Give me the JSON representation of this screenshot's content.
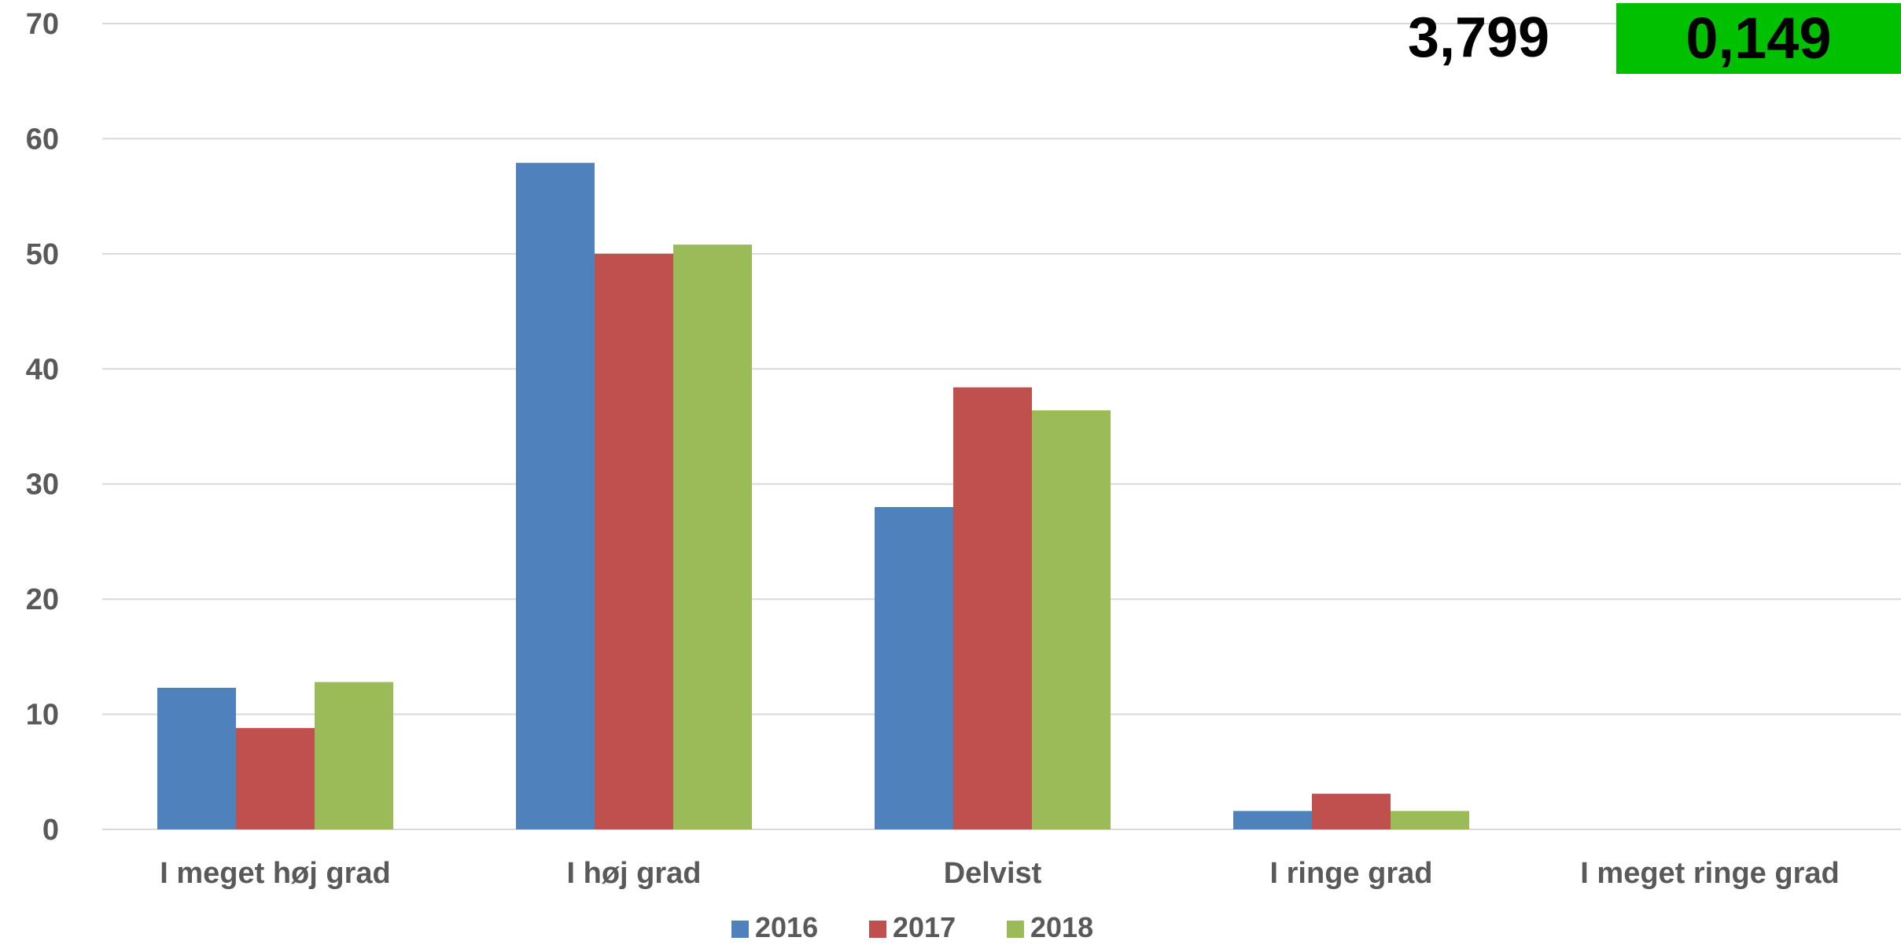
{
  "chart_data": {
    "type": "bar",
    "categories": [
      "I meget høj grad",
      "I høj grad",
      "Delvist",
      "I ringe grad",
      "I meget ringe grad"
    ],
    "series": [
      {
        "name": "2016",
        "values": [
          12.3,
          57.9,
          28.0,
          1.6,
          0
        ],
        "color": "#4F81BD"
      },
      {
        "name": "2017",
        "values": [
          8.8,
          50.0,
          38.4,
          3.1,
          0
        ],
        "color": "#C0504D"
      },
      {
        "name": "2018",
        "values": [
          12.8,
          50.8,
          36.4,
          1.6,
          0
        ],
        "color": "#9BBB59"
      }
    ],
    "ylim": [
      0,
      70
    ],
    "yticks": [
      0,
      10,
      20,
      30,
      40,
      50,
      60,
      70
    ],
    "grid": true,
    "legend": "bottom",
    "title": "",
    "xlabel": "",
    "ylabel": ""
  },
  "overlay": {
    "left_value": "3,799",
    "right_value": "0,149",
    "right_bg_color": "#00C000"
  },
  "colors": {
    "gridline": "#D9D9D9",
    "axis_text": "#595959"
  }
}
